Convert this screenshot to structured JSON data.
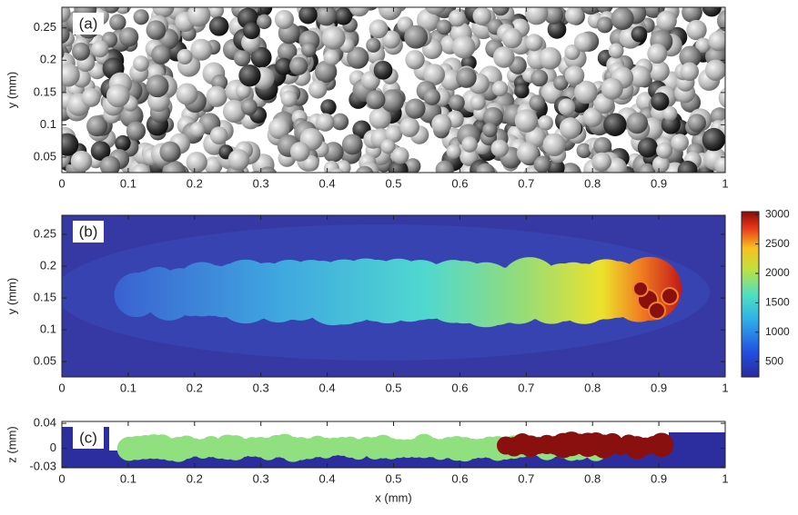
{
  "chart_data": [
    {
      "type": "image",
      "title": "(a)",
      "ylabel": "y (mm)",
      "xlim": [
        0,
        1
      ],
      "xticks": [
        0,
        0.1,
        0.2,
        0.3,
        0.4,
        0.5,
        0.6,
        0.7,
        0.8,
        0.9,
        1
      ],
      "ylim": [
        0.026,
        0.282
      ],
      "yticks": [
        0.05,
        0.1,
        0.15,
        0.2,
        0.25
      ]
    },
    {
      "type": "heatmap",
      "title": "(b)",
      "ylabel": "y (mm)",
      "xlim": [
        0,
        1
      ],
      "xticks": [
        0,
        0.1,
        0.2,
        0.3,
        0.4,
        0.5,
        0.6,
        0.7,
        0.8,
        0.9,
        1
      ],
      "ylim": [
        0.026,
        0.28
      ],
      "yticks": [
        0.05,
        0.1,
        0.15,
        0.2,
        0.25
      ],
      "clim": [
        240,
        3050
      ],
      "cticks": [
        500,
        1000,
        1500,
        2000,
        2500,
        3000
      ]
    },
    {
      "type": "heatmap",
      "title": "(c)",
      "ylabel": "z (mm)",
      "xlabel": "x (mm)",
      "xlim": [
        0,
        1
      ],
      "xticks": [
        0,
        0.1,
        0.2,
        0.3,
        0.4,
        0.5,
        0.6,
        0.7,
        0.8,
        0.9,
        1
      ],
      "ylim": [
        -0.031,
        0.043
      ],
      "yticks": [
        -0.03,
        0,
        0.04
      ]
    }
  ]
}
